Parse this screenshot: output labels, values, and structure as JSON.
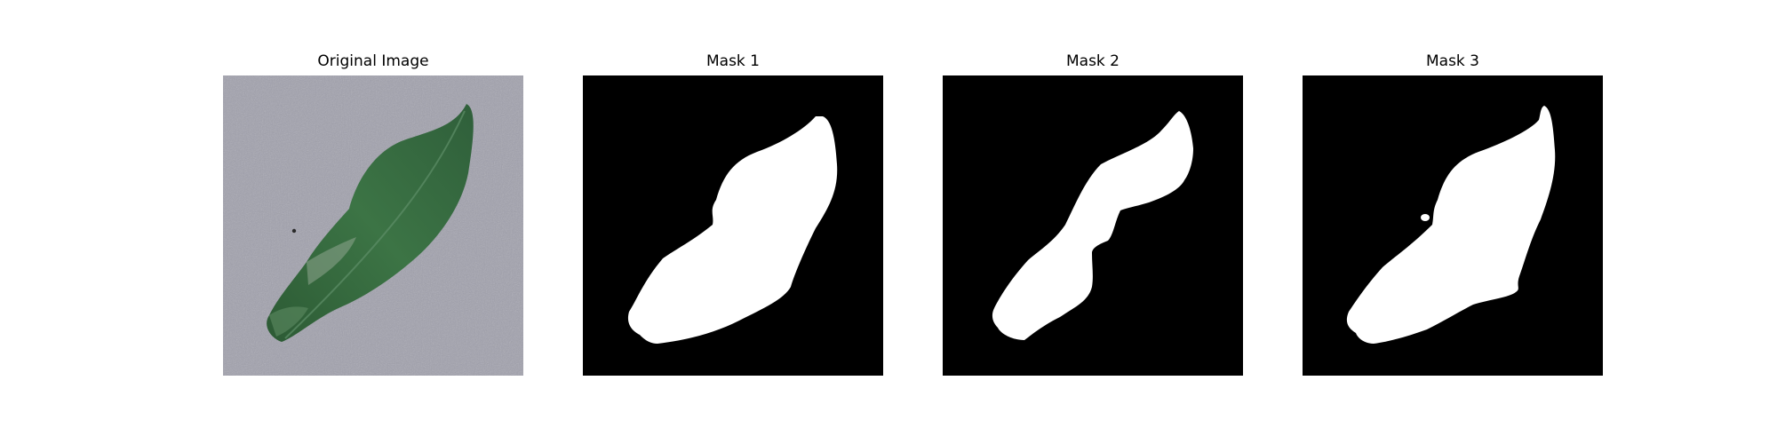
{
  "figure": {
    "panels": [
      {
        "title": "Original Image",
        "kind": "photo"
      },
      {
        "title": "Mask 1",
        "kind": "mask"
      },
      {
        "title": "Mask 2",
        "kind": "mask"
      },
      {
        "title": "Mask 3",
        "kind": "mask"
      }
    ]
  },
  "colors": {
    "background_concrete": "#9a9aa5",
    "leaf_dark": "#2f5a36",
    "leaf_mid": "#3f7347",
    "mask_bg": "#000000",
    "mask_fg": "#ffffff"
  }
}
